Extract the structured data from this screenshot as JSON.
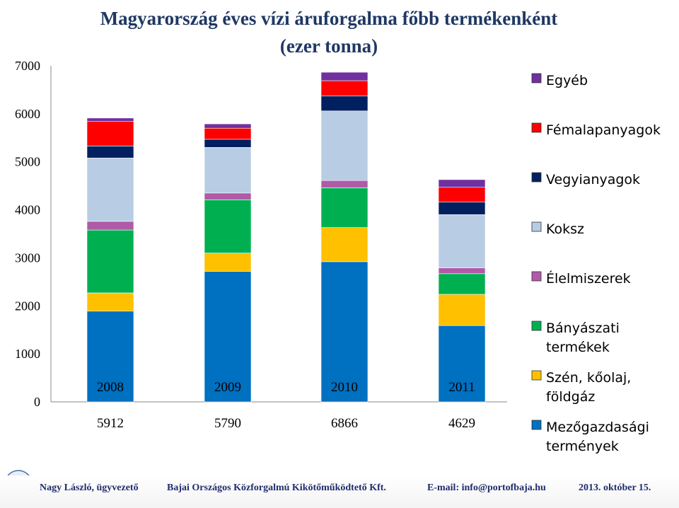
{
  "chart_data": {
    "type": "bar",
    "stacked": true,
    "title_line1": "Magyarország éves vízi áruforgalma főbb termékenként",
    "title_line2": "(ezer tonna)",
    "categories": [
      "2008",
      "2009",
      "2010",
      "2011"
    ],
    "totals": [
      "5912",
      "5790",
      "6866",
      "4629"
    ],
    "ylim": [
      0,
      7000
    ],
    "yticks": [
      "0",
      "1000",
      "2000",
      "3000",
      "4000",
      "5000",
      "6000",
      "7000"
    ],
    "grid": false,
    "legend_position": "right",
    "series": [
      {
        "name": "Mezőgazdasági termények",
        "label_lines": [
          "Mezőgazdasági",
          "termények"
        ],
        "color": "#0070c0",
        "values": [
          1890,
          2720,
          2920,
          1590
        ]
      },
      {
        "name": "Szén, kőolaj, földgáz",
        "label_lines": [
          "Szén, kőolaj,",
          "földgáz"
        ],
        "color": "#ffc000",
        "values": [
          380,
          380,
          710,
          650
        ]
      },
      {
        "name": "Bányászati termékek",
        "label_lines": [
          "Bányászati",
          "termékek"
        ],
        "color": "#00b050",
        "values": [
          1310,
          1110,
          830,
          430
        ]
      },
      {
        "name": "Élelmiszerek",
        "label_lines": [
          "Élelmiszerek"
        ],
        "color": "#b05aa8",
        "values": [
          180,
          140,
          150,
          120
        ]
      },
      {
        "name": "Koksz",
        "label_lines": [
          "Koksz"
        ],
        "color": "#b8cce4",
        "values": [
          1320,
          950,
          1450,
          1110
        ]
      },
      {
        "name": "Vegyianyagok",
        "label_lines": [
          "Vegyianyagok"
        ],
        "color": "#002060",
        "values": [
          250,
          170,
          310,
          260
        ]
      },
      {
        "name": "Fémalapanyagok",
        "label_lines": [
          "Fémalapanyagok"
        ],
        "color": "#ff0000",
        "values": [
          510,
          230,
          320,
          310
        ]
      },
      {
        "name": "Egyéb",
        "label_lines": [
          "Egyéb"
        ],
        "color": "#7030a0",
        "values": [
          72,
          90,
          176,
          159
        ]
      }
    ]
  },
  "footer": {
    "author": "Nagy László, ügyvezető",
    "company": "Bajai Országos Közforgalmú Kikötőműködtető Kft.",
    "email": "E-mail: info@portofbaja.hu",
    "date": "2013. október 15."
  },
  "logo": {
    "icon": "port-logo-icon"
  }
}
